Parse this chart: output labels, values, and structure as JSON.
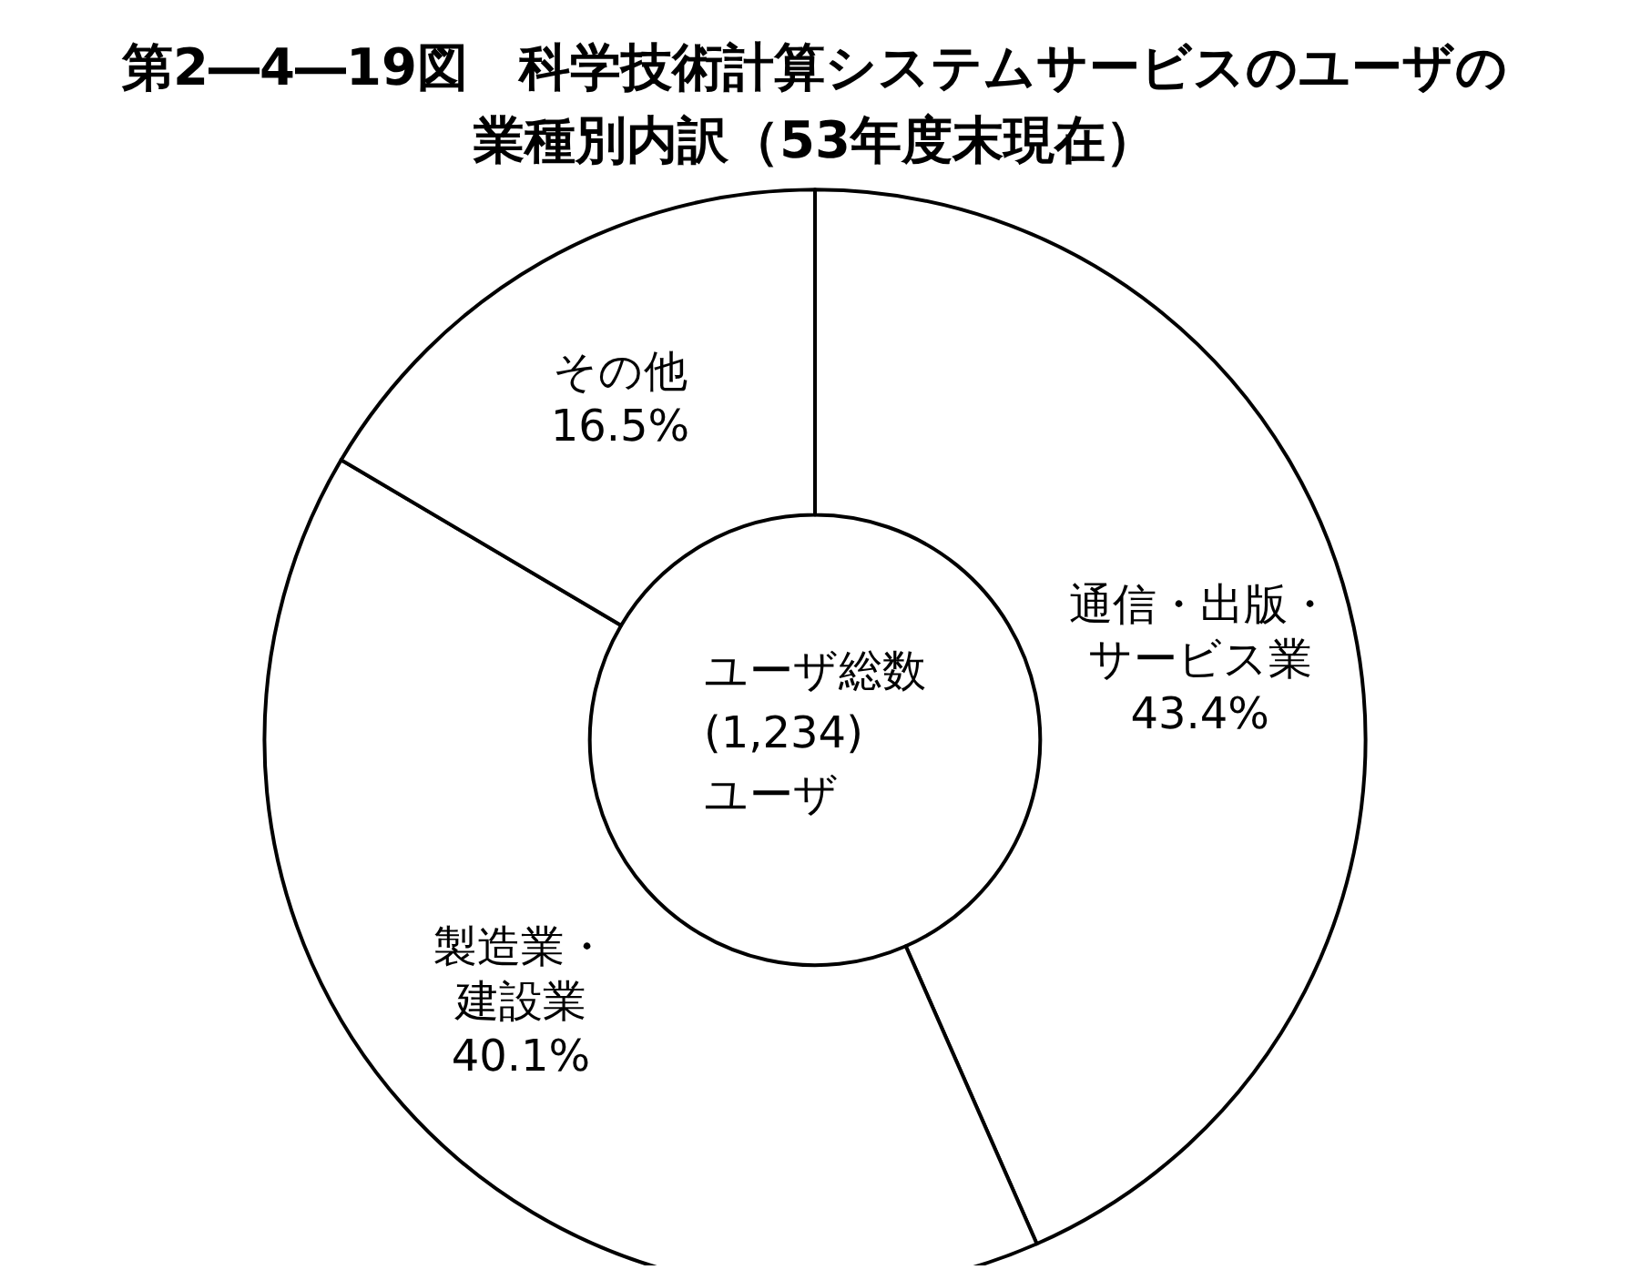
{
  "chart_data": {
    "type": "donut",
    "title": "第2―4―19図　科学技術計算システムサービスのユーザの業種別内訳（53年度末現在）",
    "categories": [
      "通信・出版・サービス業",
      "製造業・建設業",
      "その他"
    ],
    "values": [
      43.4,
      40.1,
      16.5
    ],
    "value_labels": [
      "43.4%",
      "40.1%",
      "16.5%"
    ],
    "colors": [
      "#ffffff",
      "#ffffff",
      "#ffffff"
    ],
    "legend": false,
    "annotations": [
      "ユーザ総数\n(1,234)\nユーザ"
    ]
  }
}
